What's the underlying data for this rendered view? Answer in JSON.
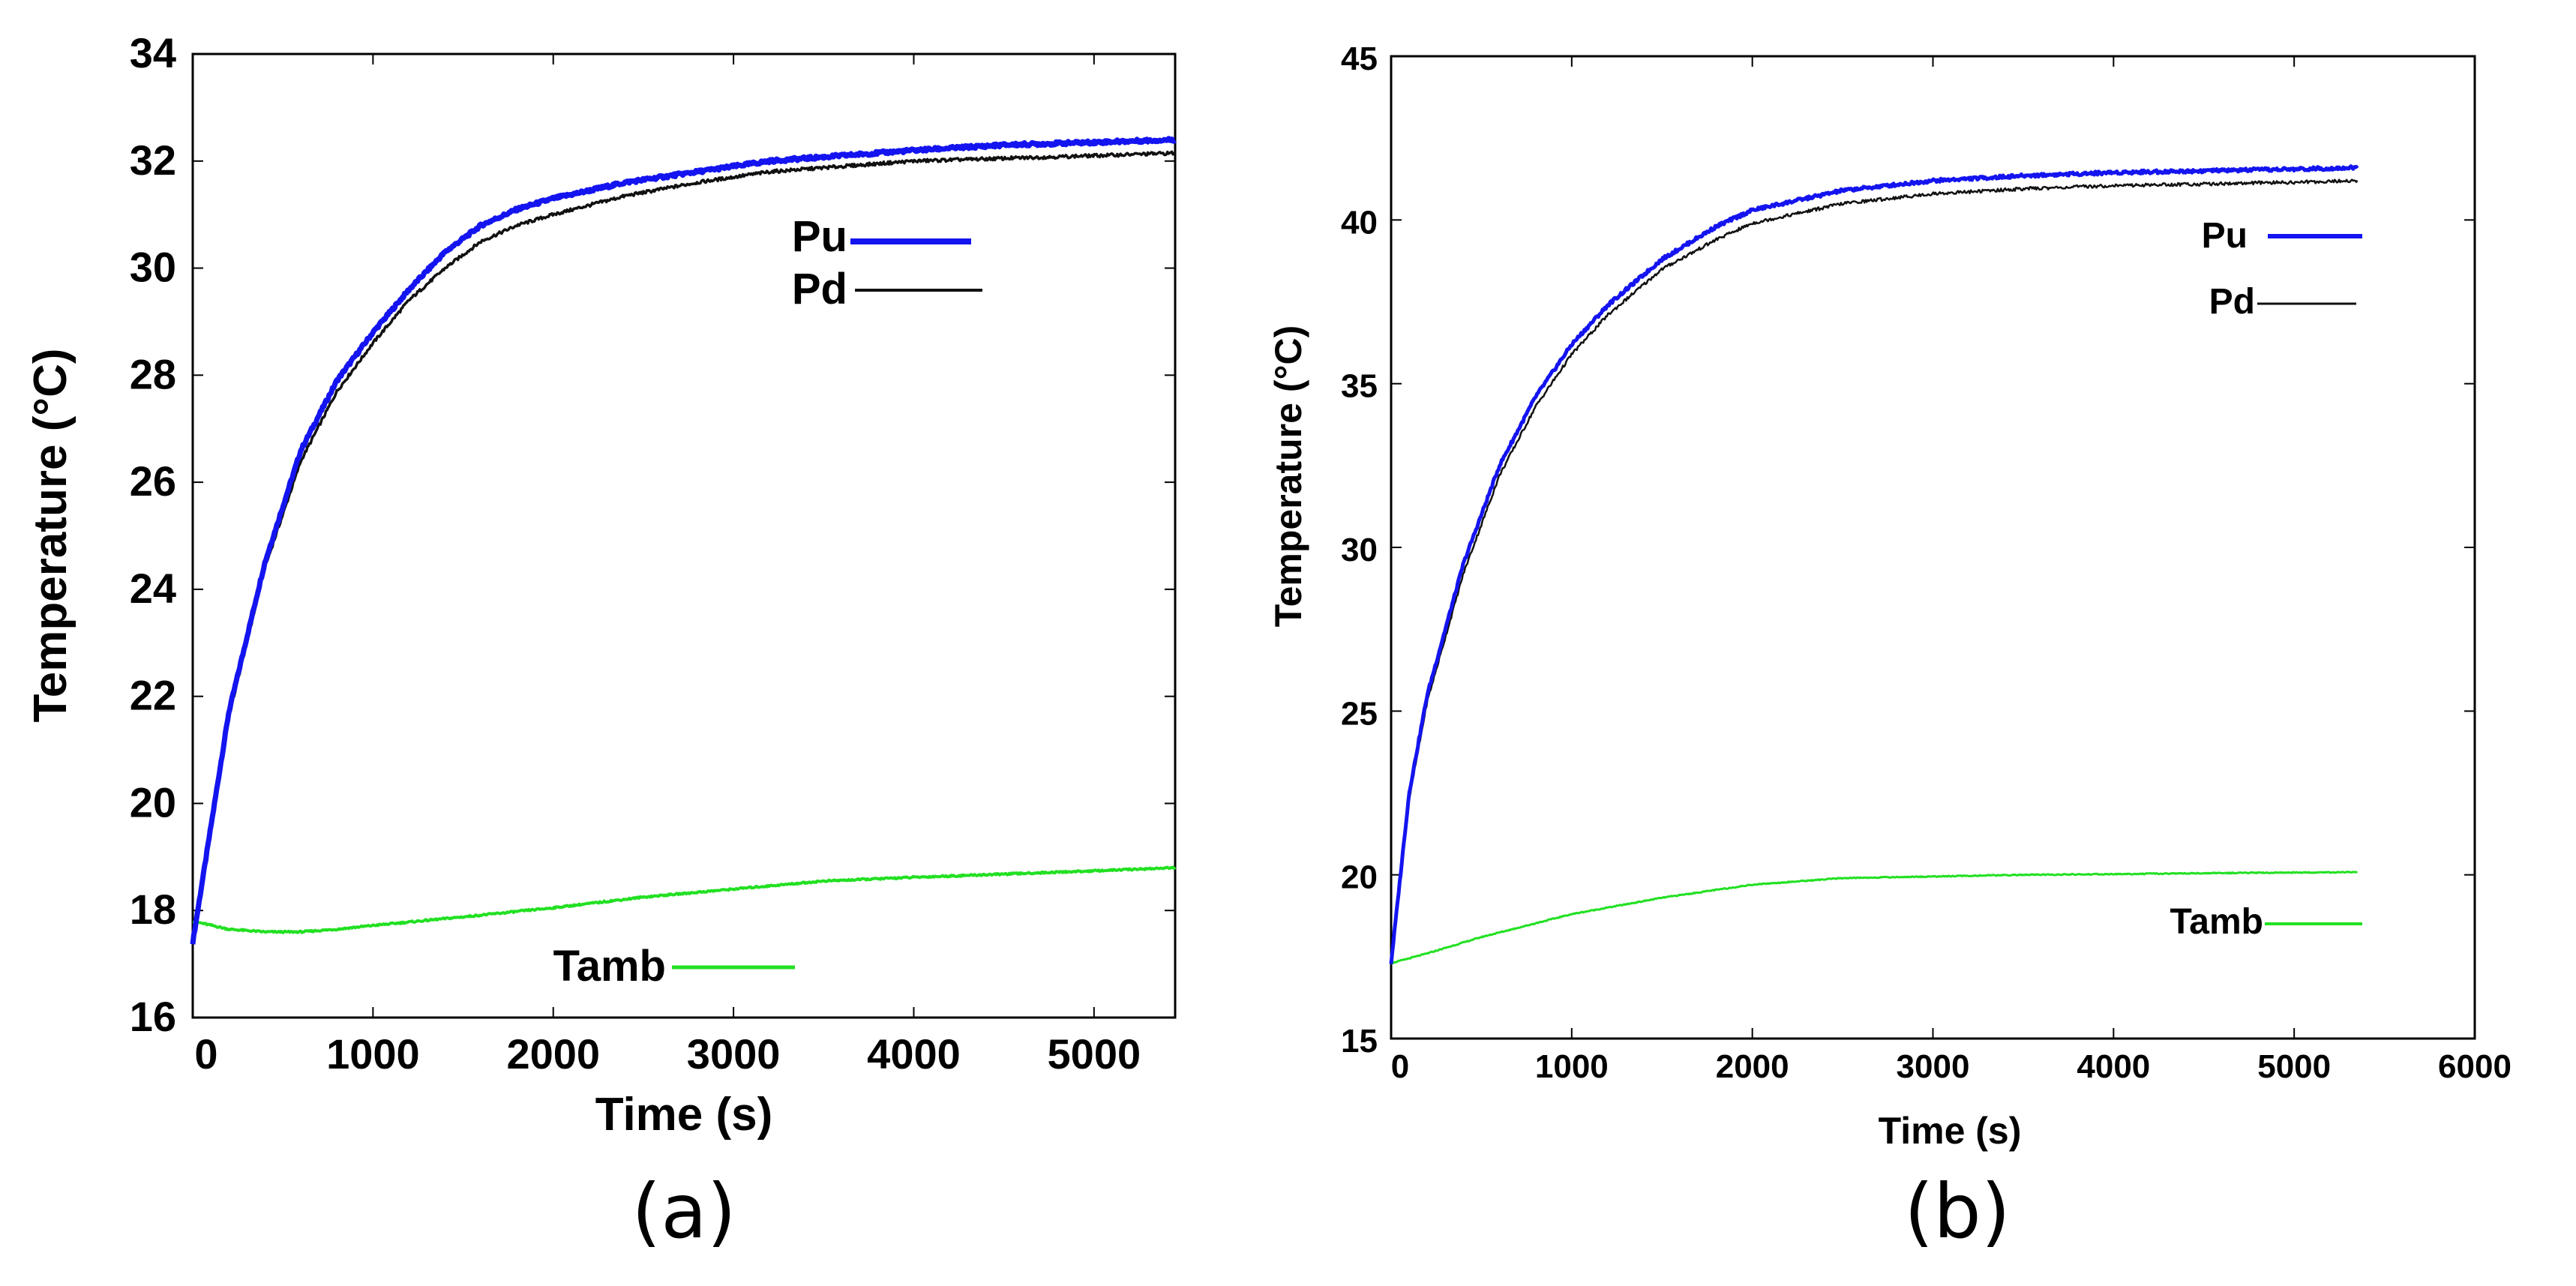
{
  "chart_data": [
    {
      "type": "line",
      "caption": "(a)",
      "title": "",
      "xlabel": "Time (s)",
      "ylabel": "Temperature (°C)",
      "xlim": [
        0,
        5450
      ],
      "ylim": [
        16,
        34
      ],
      "xticks": [
        0,
        1000,
        2000,
        3000,
        4000,
        5000
      ],
      "yticks": [
        16,
        18,
        20,
        22,
        24,
        26,
        28,
        30,
        32,
        34
      ],
      "tick_labels_x": [
        "0",
        "1000",
        "2000",
        "3000",
        "4000",
        "5000"
      ],
      "tick_labels_y": [
        "16",
        "18",
        "20",
        "22",
        "24",
        "26",
        "28",
        "30",
        "32",
        "34"
      ],
      "legend_placement": "top-right and bottom-center",
      "series": [
        {
          "name": "Pu",
          "color": "#1414f0",
          "x": [
            0,
            200,
            400,
            600,
            800,
            1000,
            1200,
            1400,
            1600,
            1800,
            2000,
            2400,
            2800,
            3200,
            3600,
            4000,
            4500,
            5000,
            5450
          ],
          "values": [
            17.4,
            21.7,
            24.5,
            26.6,
            27.9,
            28.8,
            29.6,
            30.3,
            30.8,
            31.1,
            31.3,
            31.6,
            31.8,
            32.0,
            32.1,
            32.2,
            32.3,
            32.35,
            32.4
          ]
        },
        {
          "name": "Pd",
          "color": "#111111",
          "x": [
            0,
            200,
            400,
            600,
            800,
            1000,
            1200,
            1400,
            1600,
            1800,
            2000,
            2400,
            2800,
            3200,
            3600,
            4000,
            4500,
            5000,
            5450
          ],
          "values": [
            17.4,
            21.6,
            24.4,
            26.4,
            27.7,
            28.6,
            29.4,
            30.0,
            30.5,
            30.8,
            31.0,
            31.35,
            31.6,
            31.8,
            31.9,
            32.0,
            32.05,
            32.1,
            32.15
          ]
        },
        {
          "name": "Tamb",
          "color": "#22e022",
          "x": [
            0,
            200,
            400,
            600,
            800,
            1000,
            1500,
            2000,
            2500,
            3000,
            3500,
            4000,
            4500,
            5000,
            5450
          ],
          "values": [
            17.8,
            17.65,
            17.6,
            17.6,
            17.65,
            17.72,
            17.88,
            18.05,
            18.25,
            18.4,
            18.55,
            18.62,
            18.68,
            18.74,
            18.8
          ]
        }
      ]
    },
    {
      "type": "line",
      "caption": "(b)",
      "title": "",
      "xlabel": "Time (s)",
      "ylabel": "Temperature (°C)",
      "xlim": [
        0,
        6000
      ],
      "ylim": [
        15,
        45
      ],
      "xticks": [
        0,
        1000,
        2000,
        3000,
        4000,
        5000,
        6000
      ],
      "yticks": [
        15,
        20,
        25,
        30,
        35,
        40,
        45
      ],
      "tick_labels_x": [
        "0",
        "1000",
        "2000",
        "3000",
        "4000",
        "5000",
        "6000"
      ],
      "tick_labels_y": [
        "15",
        "20",
        "25",
        "30",
        "35",
        "40",
        "45"
      ],
      "legend_placement": "top-right and bottom-right",
      "series": [
        {
          "name": "Pu",
          "color": "#1414f0",
          "x": [
            0,
            100,
            200,
            400,
            600,
            800,
            1000,
            1200,
            1500,
            1800,
            2000,
            2500,
            3000,
            3500,
            4000,
            4500,
            5000,
            5350
          ],
          "values": [
            17.3,
            22.5,
            25.5,
            29.5,
            32.5,
            34.6,
            36.2,
            37.4,
            38.8,
            39.8,
            40.3,
            40.9,
            41.2,
            41.35,
            41.45,
            41.5,
            41.55,
            41.6
          ]
        },
        {
          "name": "Pd",
          "color": "#111111",
          "x": [
            0,
            100,
            200,
            400,
            600,
            800,
            1000,
            1200,
            1500,
            1800,
            2000,
            2500,
            3000,
            3500,
            4000,
            4500,
            5000,
            5350
          ],
          "values": [
            17.3,
            22.3,
            25.3,
            29.2,
            32.2,
            34.3,
            35.9,
            37.1,
            38.5,
            39.4,
            39.9,
            40.5,
            40.8,
            40.95,
            41.05,
            41.1,
            41.15,
            41.2
          ]
        },
        {
          "name": "Tamb",
          "color": "#22e022",
          "x": [
            0,
            200,
            500,
            1000,
            1500,
            2000,
            2500,
            3000,
            3500,
            4000,
            4500,
            5000,
            5350
          ],
          "values": [
            17.3,
            17.6,
            18.1,
            18.8,
            19.3,
            19.7,
            19.9,
            19.95,
            20.0,
            20.02,
            20.05,
            20.07,
            20.08
          ]
        }
      ]
    }
  ]
}
